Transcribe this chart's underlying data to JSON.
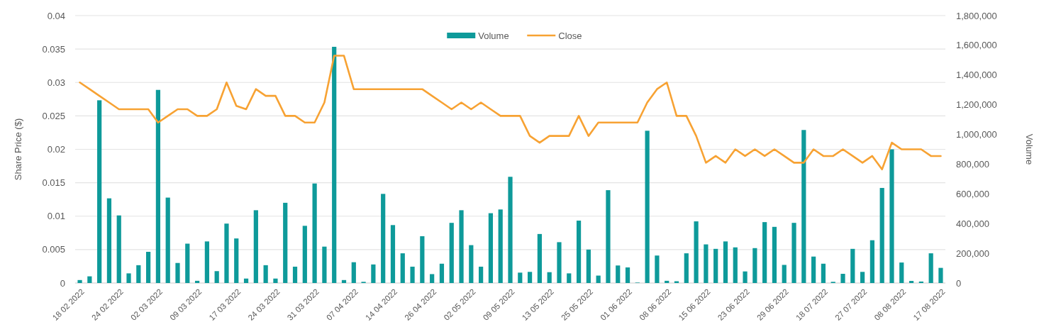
{
  "chart_data": {
    "type": "bar",
    "ylabel": "Share Price ($)",
    "y2label": "Volume",
    "grid": "y",
    "legend": "top",
    "categories": [
      "18 02 2022",
      null,
      null,
      null,
      "24 02 2022",
      null,
      null,
      null,
      "02 03 2022",
      null,
      null,
      null,
      "09 03 2022",
      null,
      null,
      null,
      "17 03 2022",
      null,
      null,
      null,
      "24 03 2022",
      null,
      null,
      null,
      "31 03 2022",
      null,
      null,
      null,
      "07 04 2022",
      null,
      null,
      null,
      "14 04 2022",
      null,
      null,
      null,
      "26 04 2022",
      null,
      null,
      null,
      "02 05 2022",
      null,
      null,
      null,
      "09 05 2022",
      null,
      null,
      null,
      "13 05 2022",
      null,
      null,
      null,
      "25 05 2022",
      null,
      null,
      null,
      "01 06 2022",
      null,
      null,
      null,
      "08 06 2022",
      null,
      null,
      null,
      "15 06 2022",
      null,
      null,
      null,
      "23 06 2022",
      null,
      null,
      null,
      "29 06 2022",
      null,
      null,
      null,
      "18 07 2022",
      null,
      null,
      null,
      "27 07 2022",
      null,
      null,
      null,
      "08 08 2022",
      null,
      null,
      null,
      "17 08 2022"
    ],
    "ylim": [
      0,
      0.04
    ],
    "yticks": [
      0,
      0.005,
      0.01,
      0.015,
      0.02,
      0.025,
      0.03,
      0.035,
      0.04
    ],
    "y2lim": [
      0,
      1800000
    ],
    "y2ticks": [
      {
        "value": 0,
        "label": "0"
      },
      {
        "value": 200000,
        "label": "200,000"
      },
      {
        "value": 400000,
        "label": "400,000"
      },
      {
        "value": 600000,
        "label": "600,000"
      },
      {
        "value": 800000,
        "label": "800,000"
      },
      {
        "value": 1000000,
        "label": "1,000,000"
      },
      {
        "value": 1200000,
        "label": "1,200,000"
      },
      {
        "value": 1400000,
        "label": "1,400,000"
      },
      {
        "value": 1600000,
        "label": "1,600,000"
      },
      {
        "value": 1800000,
        "label": "1,800,000"
      }
    ],
    "series": [
      {
        "name": "Volume",
        "axis": "y2",
        "color": "#0e9a9a",
        "values": [
          20000,
          45000,
          1230000,
          570000,
          455000,
          65000,
          120000,
          210000,
          1300000,
          575000,
          135000,
          265000,
          15000,
          280000,
          80000,
          400000,
          300000,
          30000,
          490000,
          120000,
          30000,
          540000,
          110000,
          385000,
          670000,
          245000,
          1590000,
          20000,
          140000,
          8000,
          125000,
          600000,
          390000,
          200000,
          110000,
          315000,
          60000,
          130000,
          405000,
          490000,
          255000,
          110000,
          470000,
          495000,
          715000,
          70000,
          75000,
          330000,
          73000,
          275000,
          65000,
          420000,
          225000,
          50000,
          625000,
          118000,
          105000,
          3000,
          1025000,
          185000,
          15000,
          12000,
          200000,
          415000,
          260000,
          230000,
          280000,
          240000,
          78000,
          235000,
          410000,
          378000,
          122000,
          405000,
          1030000,
          178000,
          130000,
          8000,
          62000,
          230000,
          75000,
          288000,
          640000,
          900000,
          138000,
          14000,
          10000,
          200000,
          102000
        ]
      },
      {
        "name": "Close",
        "type": "line",
        "axis": "y",
        "color": "#f7a233",
        "values": [
          0.03,
          0.029,
          0.028,
          0.027,
          0.026,
          0.026,
          0.026,
          0.026,
          0.024,
          0.025,
          0.026,
          0.026,
          0.025,
          0.025,
          0.026,
          0.03,
          0.0265,
          0.026,
          0.029,
          0.028,
          0.028,
          0.025,
          0.025,
          0.024,
          0.024,
          0.027,
          0.034,
          0.034,
          0.029,
          0.029,
          0.029,
          0.029,
          0.029,
          0.029,
          0.029,
          0.029,
          0.028,
          0.027,
          0.026,
          0.027,
          0.026,
          0.027,
          0.026,
          0.025,
          0.025,
          0.025,
          0.022,
          0.021,
          0.022,
          0.022,
          0.022,
          0.025,
          0.022,
          0.024,
          0.024,
          0.024,
          0.024,
          0.024,
          0.027,
          0.029,
          0.03,
          0.025,
          0.025,
          0.022,
          0.018,
          0.019,
          0.018,
          0.02,
          0.019,
          0.02,
          0.019,
          0.02,
          0.019,
          0.018,
          0.018,
          0.02,
          0.019,
          0.019,
          0.02,
          0.019,
          0.018,
          0.019,
          0.017,
          0.021,
          0.02,
          0.02,
          0.02,
          0.019,
          0.019
        ]
      }
    ]
  }
}
